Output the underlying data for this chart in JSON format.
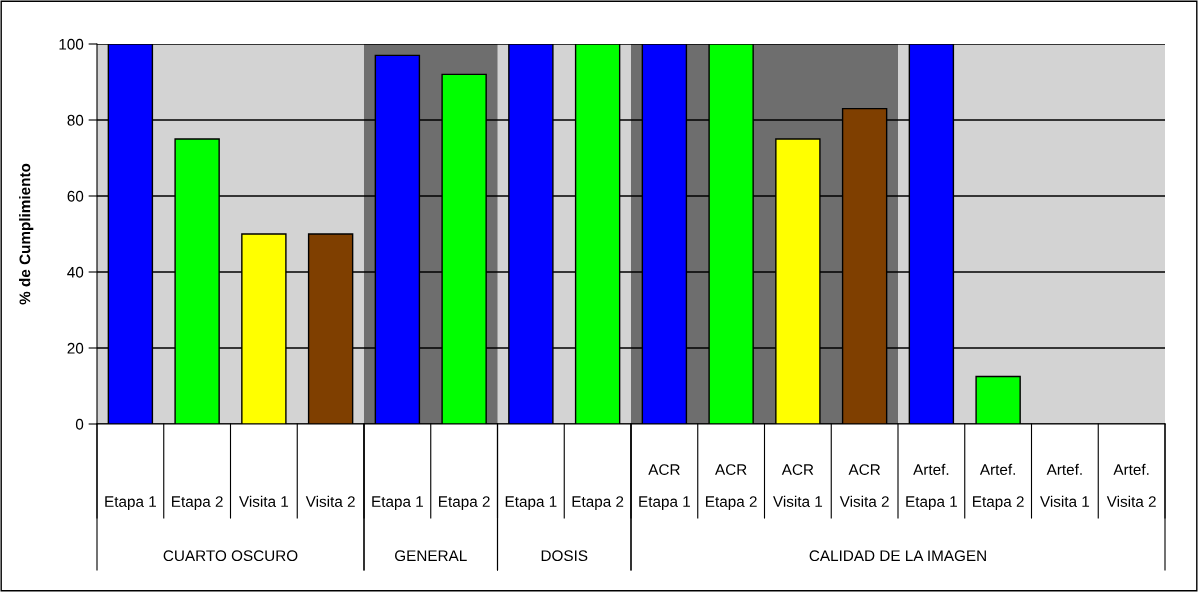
{
  "chart_data": {
    "type": "bar",
    "ylabel": "% de Cumplimiento",
    "categories": [
      "Etapa 1",
      "Etapa 2",
      "Visita 1",
      "Visita 2",
      "Etapa 1",
      "Etapa 2",
      "Etapa 1",
      "Etapa 2",
      "ACR\nEtapa 1",
      "ACR\nEtapa 2",
      "ACR\nVisita 1",
      "ACR\nVisita 2",
      "Artef.\nEtapa 1",
      "Artef.\nEtapa 2",
      "Artef.\nVisita 1",
      "Artef.\nVisita 2"
    ],
    "values": [
      100,
      75,
      50,
      50,
      97,
      92,
      100,
      100,
      100,
      100,
      75,
      83,
      100,
      12.5,
      0,
      0
    ],
    "colors": [
      "#0000ff",
      "#00ff00",
      "#ffff00",
      "#7f3f00",
      "#0000ff",
      "#00ff00",
      "#0000ff",
      "#00ff00",
      "#0000ff",
      "#00ff00",
      "#ffff00",
      "#7f3f00",
      "#0000ff",
      "#00ff00",
      "#ffff00",
      "#7f3f00"
    ],
    "ylim": [
      0,
      100
    ],
    "yticks": [
      0,
      20,
      40,
      60,
      80,
      100
    ],
    "grid": "y",
    "annotations": [
      "CUARTO OSCURO",
      "GENERAL",
      "DOSIS",
      "CALIDAD DE LA IMAGEN"
    ]
  }
}
